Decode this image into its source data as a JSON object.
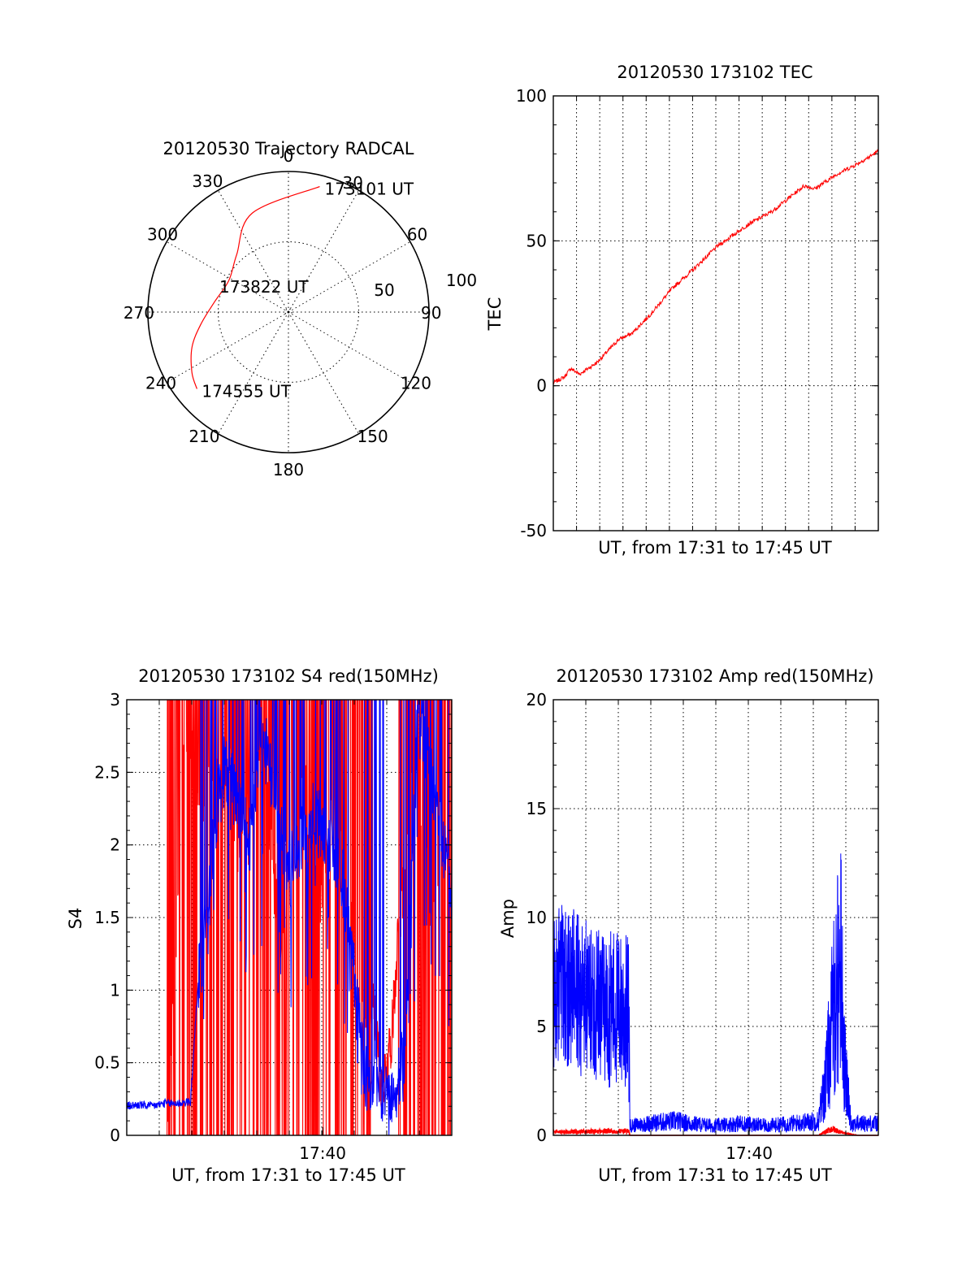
{
  "chart_data": [
    {
      "id": "trajectory",
      "type": "polar",
      "title": "20120530 Trajectory RADCAL",
      "angle_labels": [
        "0",
        "30",
        "60",
        "90",
        "120",
        "150",
        "180",
        "210",
        "240",
        "270",
        "300",
        "330"
      ],
      "angle_values": [
        0,
        30,
        60,
        90,
        120,
        150,
        180,
        210,
        240,
        270,
        300,
        330
      ],
      "radial_max": 100,
      "radial_ticks": [
        50,
        100
      ],
      "radial_tick_labels": [
        "50",
        "100"
      ],
      "grid": true,
      "series": [
        {
          "color": "#ff0000",
          "azimuth": [
            14,
            340,
            318,
            298,
            278,
            262,
            250,
            238,
            230
          ],
          "radius": [
            92,
            75,
            55,
            48,
            53,
            63,
            73,
            81,
            85
          ]
        }
      ],
      "annotations": [
        {
          "text": "173101 UT",
          "azimuth": 14,
          "radius": 92
        },
        {
          "text": "173822 UT",
          "azimuth": 298,
          "radius": 48
        },
        {
          "text": "174555 UT",
          "azimuth": 230,
          "radius": 85
        }
      ]
    },
    {
      "id": "tec",
      "type": "line",
      "title": "20120530 173102 TEC",
      "xlabel": "UT, from 17:31 to 17:45 UT",
      "ylabel": "TEC",
      "xlim": [
        0,
        14.9
      ],
      "ylim": [
        -50,
        100
      ],
      "yticks": [
        -50,
        0,
        50,
        100
      ],
      "ytick_labels": [
        "-50",
        "0",
        "50",
        "100"
      ],
      "grid": true,
      "series": [
        {
          "color": "#ff0000",
          "x": [
            0,
            0.5,
            0.8,
            1.2,
            2,
            3,
            3.6,
            4.5,
            5.5,
            6.4,
            7.5,
            9,
            10,
            11,
            11.5,
            12,
            13,
            13.8,
            14.5,
            14.9
          ],
          "y": [
            1,
            3,
            6,
            4,
            8,
            16,
            18,
            25,
            34,
            40,
            48,
            56,
            60,
            66,
            69,
            68,
            73,
            76,
            79,
            81
          ]
        }
      ]
    },
    {
      "id": "s4",
      "type": "line",
      "title": "20120530 173102 S4 red(150MHz)",
      "xlabel": "UT, from 17:31 to 17:45 UT",
      "ylabel": "S4",
      "xlim": [
        17.516,
        17.766
      ],
      "ylim": [
        0,
        3
      ],
      "yticks": [
        0,
        0.5,
        1,
        1.5,
        2,
        2.5,
        3
      ],
      "ytick_labels": [
        "0",
        "0.5",
        "1",
        "1.5",
        "2",
        "2.5",
        "3"
      ],
      "xticks": [
        17.6667
      ],
      "xtick_labels": [
        "17:40"
      ],
      "grid": true,
      "series": [
        {
          "color": "#0000ff",
          "x": [
            17.516,
            17.525,
            17.535,
            17.545,
            17.555,
            17.565,
            17.572,
            17.578,
            17.584,
            17.59,
            17.6,
            17.61,
            17.62,
            17.64,
            17.66,
            17.68,
            17.7,
            17.71,
            17.72,
            17.73,
            17.74,
            17.75,
            17.766
          ],
          "y": [
            0.2,
            0.21,
            0.2,
            0.22,
            0.22,
            0.23,
            1.2,
            1.5,
            2.1,
            2.6,
            2.3,
            2.0,
            2.8,
            1.8,
            2.2,
            1.9,
            0.4,
            0.3,
            0.2,
            0.6,
            2.9,
            2.5,
            1.7
          ]
        },
        {
          "color": "#ff0000",
          "x": [
            17.547,
            17.56,
            17.575,
            17.59,
            17.605,
            17.62,
            17.635,
            17.65,
            17.665,
            17.68,
            17.695,
            17.705,
            17.712,
            17.72,
            17.73,
            17.74,
            17.75,
            17.766
          ],
          "y": [
            0,
            3,
            2.6,
            3,
            2.2,
            3,
            1.4,
            3,
            1.9,
            2.7,
            0.9,
            1.0,
            0.3,
            0.7,
            2.2,
            2.8,
            1.8,
            2.6
          ]
        }
      ]
    },
    {
      "id": "amp",
      "type": "line",
      "title": "20120530 173102 Amp red(150MHz)",
      "xlabel": "UT, from 17:31 to 17:45 UT",
      "ylabel": "Amp",
      "xlim": [
        17.516,
        17.766
      ],
      "ylim": [
        0,
        20
      ],
      "yticks": [
        0,
        5,
        10,
        15,
        20
      ],
      "ytick_labels": [
        "0",
        "5",
        "10",
        "15",
        "20"
      ],
      "xticks": [
        17.6667
      ],
      "xtick_labels": [
        "17:40"
      ],
      "grid": true,
      "series": [
        {
          "color": "#0000ff",
          "x": [
            17.516,
            17.525,
            17.535,
            17.545,
            17.555,
            17.565,
            17.574,
            17.575,
            17.59,
            17.61,
            17.62,
            17.64,
            17.66,
            17.68,
            17.72,
            17.726,
            17.732,
            17.737,
            17.74,
            17.745,
            17.766
          ],
          "y": [
            6.5,
            7,
            6.5,
            6.2,
            6,
            5.8,
            5.5,
            0.4,
            0.5,
            0.6,
            0.5,
            0.4,
            0.5,
            0.4,
            0.6,
            2.5,
            5.5,
            7.5,
            3,
            0.5,
            0.5
          ]
        },
        {
          "color": "#ff0000",
          "x": [
            17.516,
            17.545,
            17.574,
            17.575,
            17.72,
            17.73,
            17.74,
            17.75,
            17.766
          ],
          "y": [
            0.15,
            0.18,
            0.2,
            0,
            0,
            0.3,
            0.1,
            0,
            0
          ]
        }
      ]
    }
  ]
}
